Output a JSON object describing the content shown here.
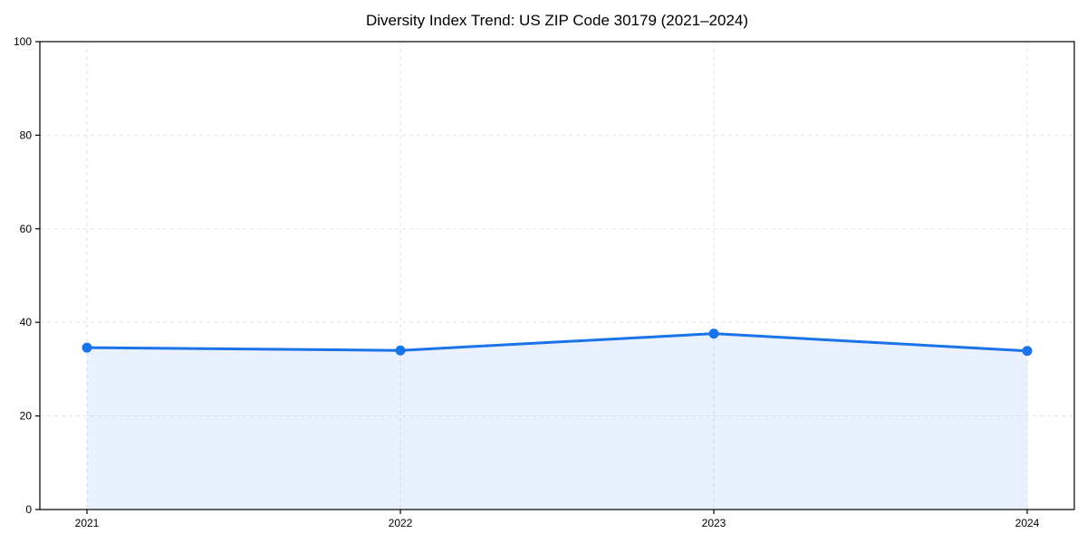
{
  "chart_data": {
    "type": "area",
    "title": "Diversity Index Trend: US ZIP Code 30179 (2021–2024)",
    "x": [
      "2021",
      "2022",
      "2023",
      "2024"
    ],
    "values": [
      34.6,
      34.0,
      37.6,
      33.9
    ],
    "series_name": "Diversity Index",
    "xlabel": "",
    "ylabel": "",
    "ylim": [
      0,
      100
    ],
    "yticks": [
      0,
      20,
      40,
      60,
      80,
      100
    ],
    "grid": true,
    "grid_style": "dashed",
    "legend": "none",
    "line_color": "#1a73e8",
    "fill_color": "#1a73e8",
    "fill_opacity": 0.1,
    "grid_color": "#e3e3e3",
    "spine_color": "#000000",
    "marker": "circle"
  }
}
